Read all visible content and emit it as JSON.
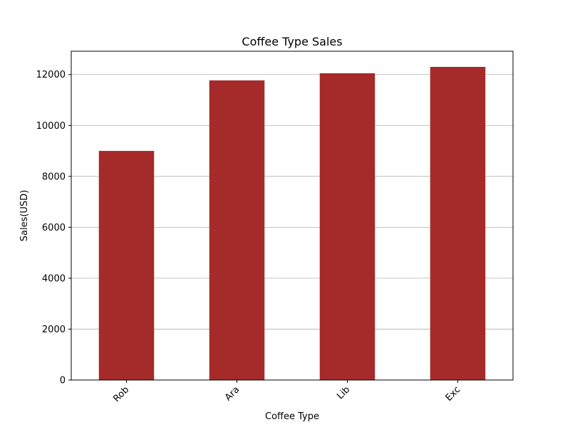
{
  "chart_data": {
    "type": "bar",
    "title": "Coffee Type Sales",
    "xlabel": "Coffee Type",
    "ylabel": "Sales(USD)",
    "categories": [
      "Rob",
      "Ara",
      "Lib",
      "Exc"
    ],
    "values": [
      9000,
      11770,
      12050,
      12300
    ],
    "ylim": [
      0,
      12915
    ],
    "yticks": [
      0,
      2000,
      4000,
      6000,
      8000,
      10000,
      12000
    ],
    "grid": "horizontal",
    "bar_color": "#a52a2a",
    "x_tick_rotation": 45
  }
}
